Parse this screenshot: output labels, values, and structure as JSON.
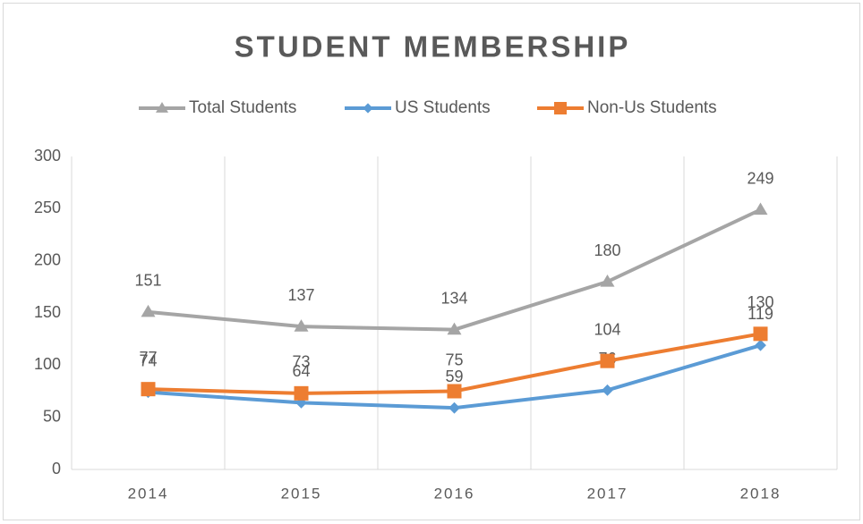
{
  "chart_data": {
    "type": "line",
    "title": "STUDENT MEMBERSHIP",
    "categories": [
      "2014",
      "2015",
      "2016",
      "2017",
      "2018"
    ],
    "series": [
      {
        "name": "Total Students",
        "color": "#a5a5a5",
        "marker": "triangle",
        "values": [
          151,
          137,
          134,
          180,
          249
        ]
      },
      {
        "name": "US Students",
        "color": "#5b9bd5",
        "marker": "diamond",
        "values": [
          74,
          64,
          59,
          76,
          119
        ]
      },
      {
        "name": "Non-Us Students",
        "color": "#ed7d31",
        "marker": "square",
        "values": [
          77,
          73,
          75,
          104,
          130
        ]
      }
    ],
    "ylim": [
      0,
      300
    ],
    "yticks": [
      0,
      50,
      100,
      150,
      200,
      250,
      300
    ],
    "grid": true,
    "legend": "top"
  }
}
